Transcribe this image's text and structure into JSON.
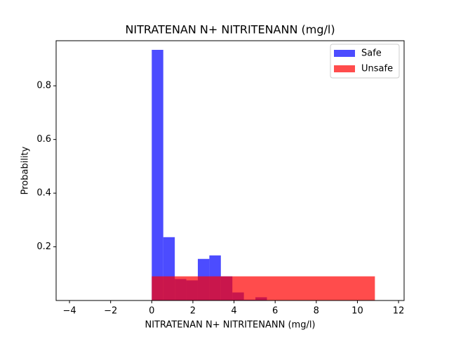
{
  "chart_data": {
    "type": "histogram",
    "title": "NITRATENAN N+ NITRITENANN (mg/l)",
    "xlabel": "NITRATENAN N+ NITRITENANN (mg/l)",
    "ylabel": "Probability",
    "series": [
      {
        "name": "Safe",
        "color": "#0000ff",
        "opacity": 0.7,
        "bins": [
          0,
          0.56,
          1.12,
          1.68,
          2.24,
          2.8,
          3.36,
          3.92,
          4.48,
          5.04,
          5.6
        ],
        "values": [
          0.934,
          0.236,
          0.08,
          0.075,
          0.155,
          0.168,
          0.09,
          0.03,
          0.003,
          0.012
        ]
      },
      {
        "name": "Unsafe",
        "color": "#ff0000",
        "opacity": 0.7,
        "bins": [
          0,
          10.85
        ],
        "values": [
          0.09
        ]
      }
    ],
    "xlim": [
      -4.65,
      12.27
    ],
    "ylim": [
      0,
      0.968
    ],
    "xticks": [
      {
        "value": -4,
        "label": "−4"
      },
      {
        "value": -2,
        "label": "−2"
      },
      0,
      2,
      4,
      6,
      8,
      10,
      12
    ],
    "yticks": [
      0.2,
      0.4,
      0.6,
      0.8
    ],
    "legend": "upper right"
  }
}
